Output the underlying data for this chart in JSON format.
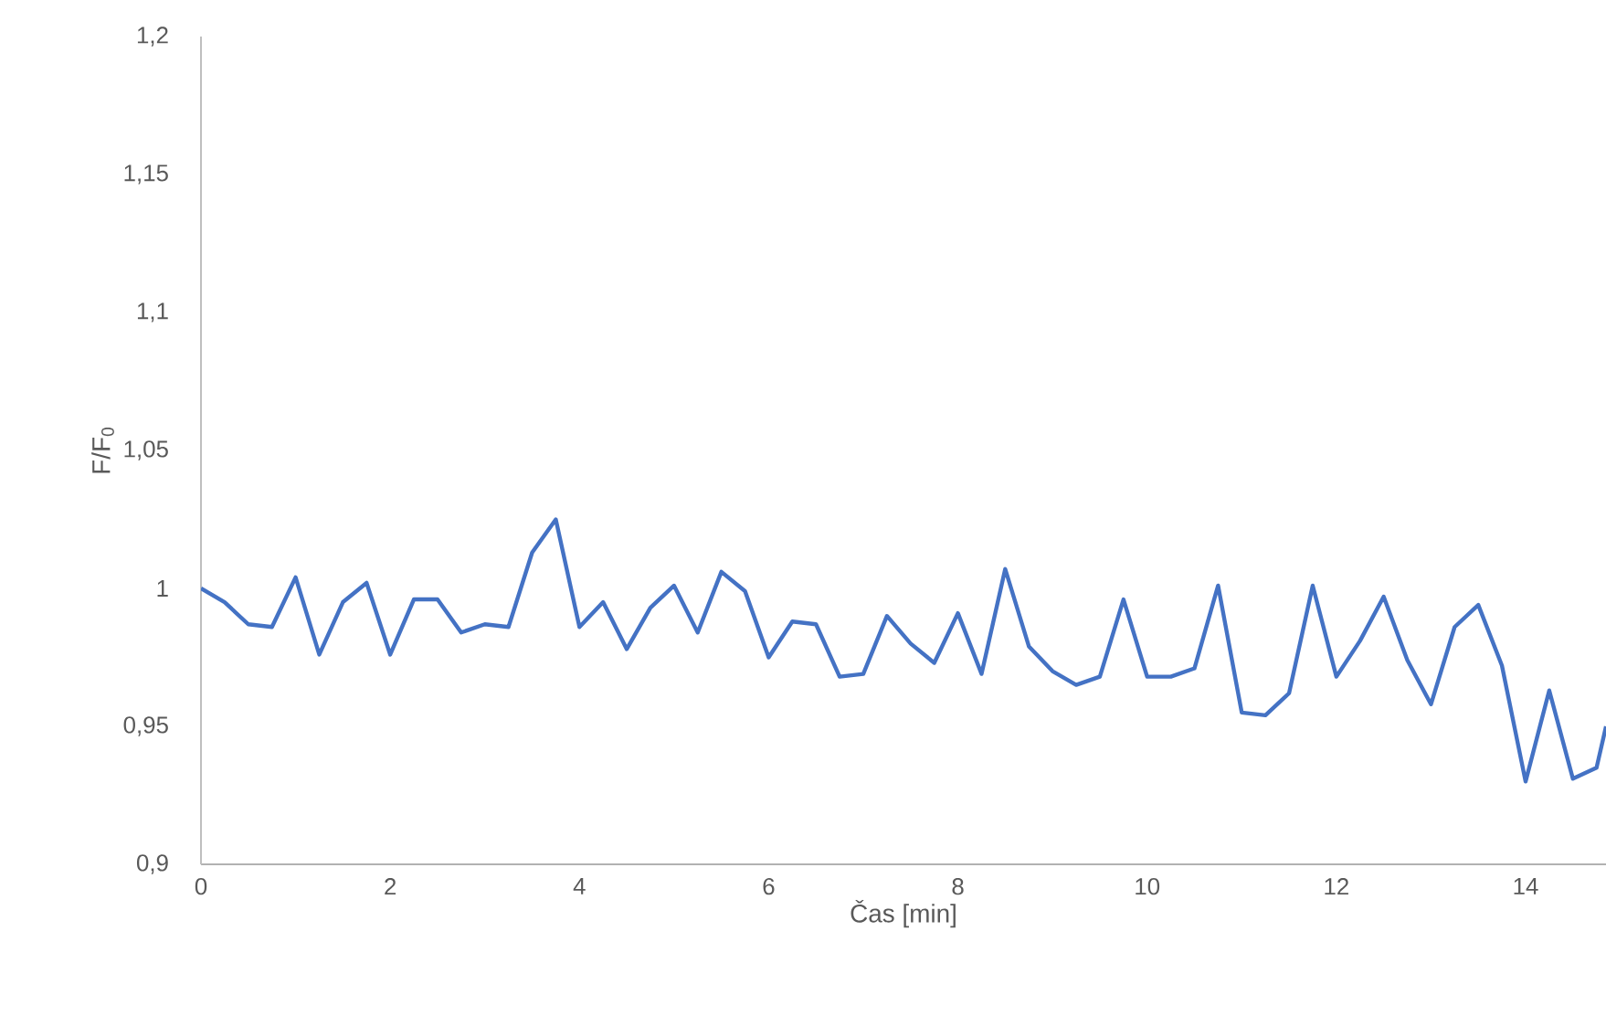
{
  "chart_data": {
    "type": "line",
    "xlabel": "Čas [min]",
    "ylabel": "F/F$_{0}$",
    "xlim": [
      0,
      14.85
    ],
    "ylim": [
      0.9,
      1.2
    ],
    "xticks": [
      0,
      2,
      4,
      6,
      8,
      10,
      12,
      14
    ],
    "yticks": [
      {
        "value": 0.9,
        "label": "0,9"
      },
      {
        "value": 0.95,
        "label": "0,95"
      },
      {
        "value": 1,
        "label": "1"
      },
      {
        "value": 1.05,
        "label": "1,05"
      },
      {
        "value": 1.1,
        "label": "1,1"
      },
      {
        "value": 1.15,
        "label": "1,15"
      },
      {
        "value": 1.2,
        "label": "1,2"
      }
    ],
    "grid": false,
    "legend": false,
    "marker": "none",
    "line_style": "solid",
    "x": [
      0,
      0.25,
      0.5,
      0.75,
      1,
      1.25,
      1.5,
      1.75,
      2,
      2.25,
      2.5,
      2.75,
      3,
      3.25,
      3.5,
      3.75,
      4,
      4.25,
      4.5,
      4.75,
      5,
      5.25,
      5.5,
      5.75,
      6,
      6.25,
      6.5,
      6.75,
      7,
      7.25,
      7.5,
      7.75,
      8,
      8.25,
      8.5,
      8.75,
      9,
      9.25,
      9.5,
      9.75,
      10,
      10.25,
      10.5,
      10.75,
      11,
      11.25,
      11.5,
      11.75,
      12,
      12.25,
      12.5,
      12.75,
      13,
      13.25,
      13.5,
      13.75,
      14,
      14.25,
      14.5,
      14.75,
      14.85
    ],
    "series": [
      {
        "color": "#4472c4",
        "values": [
          1.0,
          0.995,
          0.987,
          0.986,
          1.004,
          0.976,
          0.995,
          1.002,
          0.976,
          0.996,
          0.996,
          0.984,
          0.987,
          0.986,
          1.013,
          1.025,
          0.986,
          0.995,
          0.978,
          0.993,
          1.001,
          0.984,
          1.006,
          0.999,
          0.975,
          0.988,
          0.987,
          0.968,
          0.969,
          0.99,
          0.98,
          0.973,
          0.991,
          0.969,
          1.007,
          0.979,
          0.97,
          0.965,
          0.968,
          0.996,
          0.968,
          0.968,
          0.971,
          1.001,
          0.955,
          0.954,
          0.962,
          1.001,
          0.968,
          0.981,
          0.997,
          0.974,
          0.958,
          0.986,
          0.994,
          0.972,
          0.93,
          0.963,
          0.931,
          0.935,
          0.95
        ]
      }
    ]
  }
}
